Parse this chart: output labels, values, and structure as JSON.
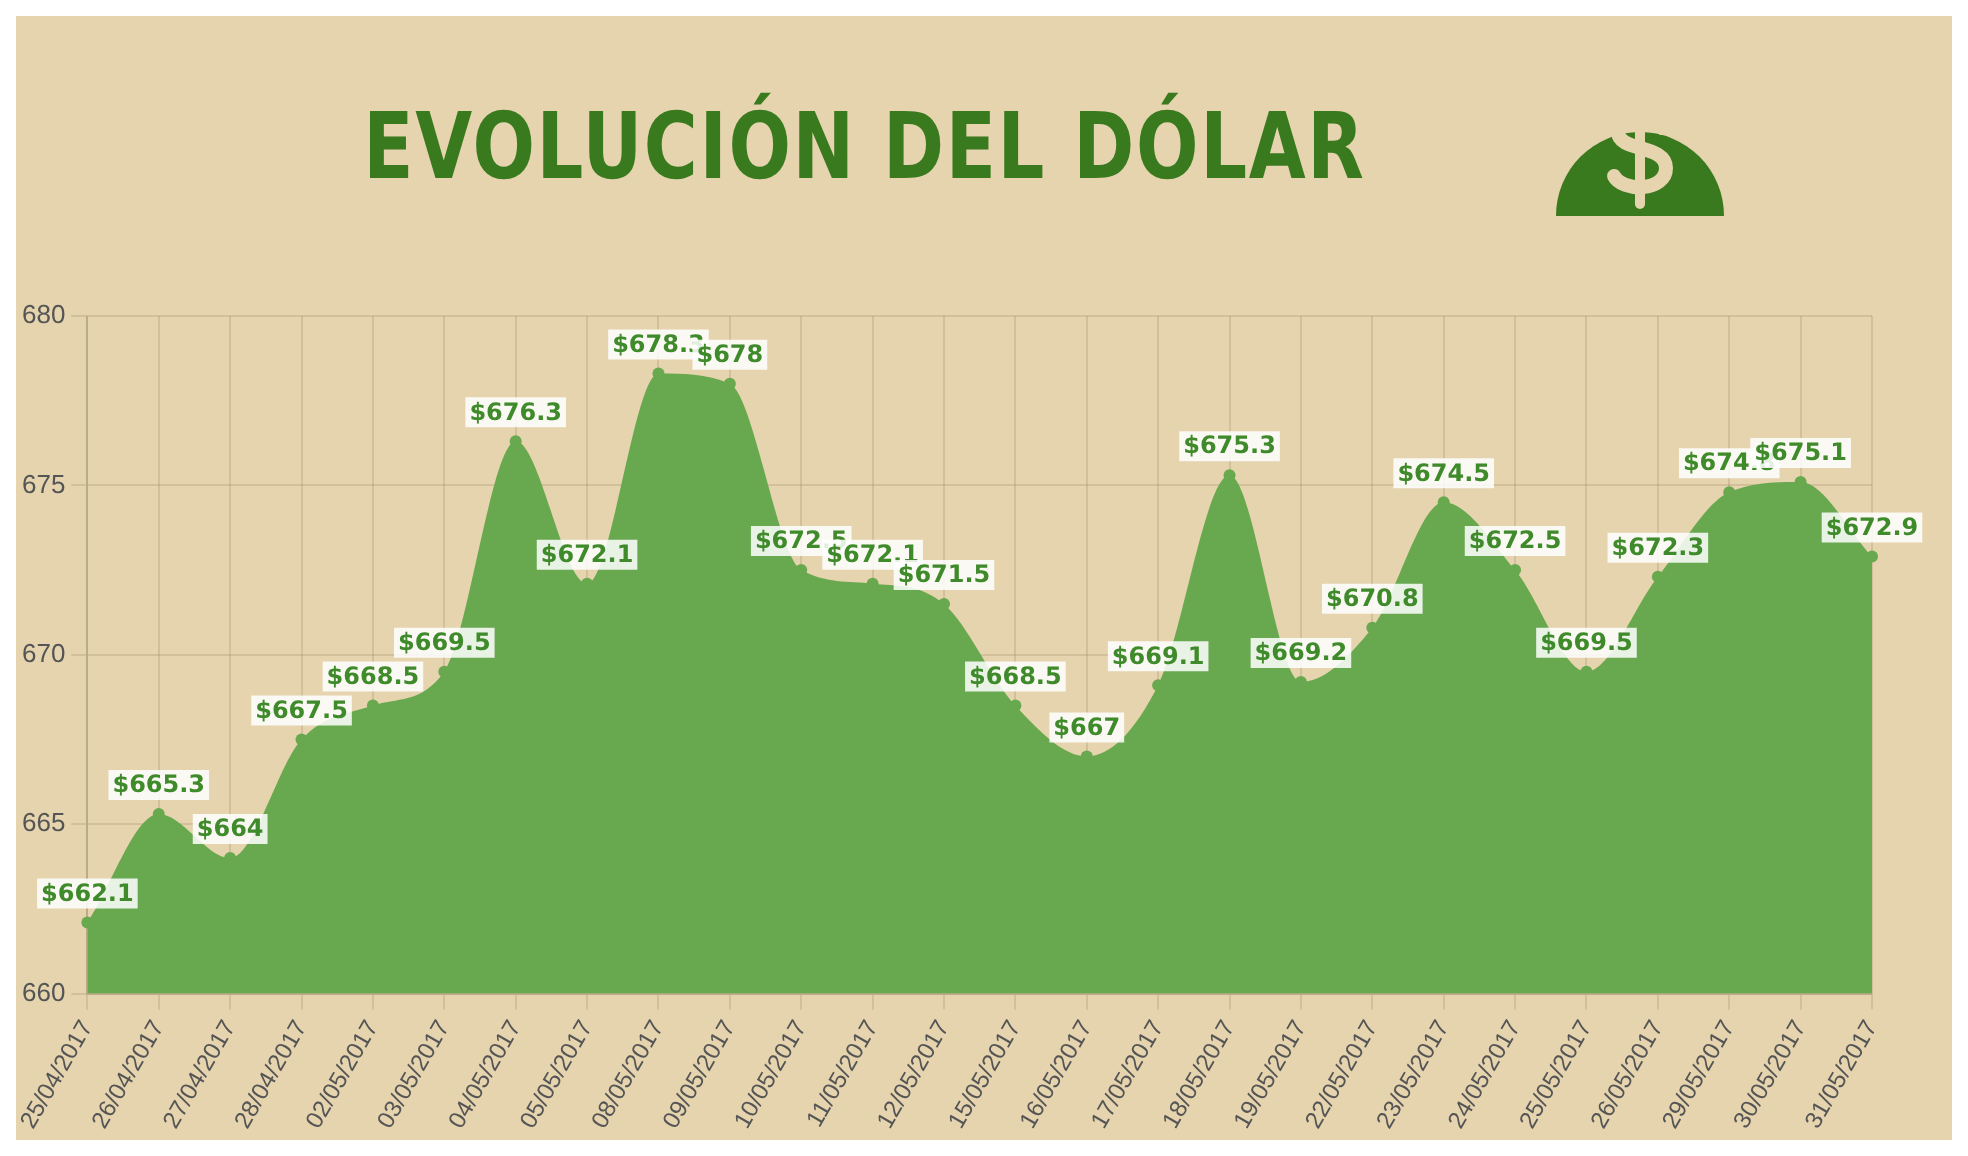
{
  "chart_data": {
    "type": "area",
    "title": "EVOLUCIÓN DEL DÓLAR",
    "categories": [
      "25/04/2017",
      "26/04/2017",
      "27/04/2017",
      "28/04/2017",
      "02/05/2017",
      "03/05/2017",
      "04/05/2017",
      "05/05/2017",
      "08/05/2017",
      "09/05/2017",
      "10/05/2017",
      "11/05/2017",
      "12/05/2017",
      "15/05/2017",
      "16/05/2017",
      "17/05/2017",
      "18/05/2017",
      "19/05/2017",
      "22/05/2017",
      "23/05/2017",
      "24/05/2017",
      "25/05/2017",
      "26/05/2017",
      "29/05/2017",
      "30/05/2017",
      "31/05/2017"
    ],
    "series": [
      {
        "color": "#68a84f",
        "values": [
          662.1,
          665.3,
          664,
          667.5,
          668.5,
          669.5,
          676.3,
          672.1,
          678.3,
          678,
          672.5,
          672.1,
          671.5,
          668.5,
          667,
          669.1,
          675.3,
          669.2,
          670.8,
          674.5,
          672.5,
          669.5,
          672.3,
          674.8,
          675.1,
          672.9
        ],
        "value_labels": [
          "$662.1",
          "$665.3",
          "$664",
          "$667.5",
          "$668.5",
          "$669.5",
          "$676.3",
          "$672.1",
          "$678.3",
          "$678",
          "$672.5",
          "$672.1",
          "$671.5",
          "$668.5",
          "$667",
          "$669.1",
          "$675.3",
          "$669.2",
          "$670.8",
          "$674.5",
          "$672.5",
          "$669.5",
          "$672.3",
          "$674.8",
          "$675.1",
          "$672.9"
        ]
      }
    ],
    "ylim": [
      660,
      680
    ],
    "yticks": [
      660,
      665,
      670,
      675,
      680
    ],
    "grid": true,
    "marker": "circle"
  }
}
